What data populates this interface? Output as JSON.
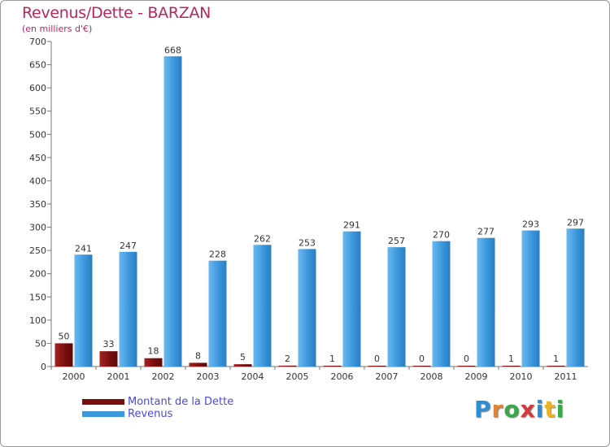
{
  "chart_data": {
    "type": "bar",
    "title": "Revenus/Dette - BARZAN",
    "subtitle": "(en milliers d'€)",
    "categories": [
      "2000",
      "2001",
      "2002",
      "2003",
      "2004",
      "2005",
      "2006",
      "2007",
      "2008",
      "2009",
      "2010",
      "2011"
    ],
    "series": [
      {
        "name": "Montant de la Dette",
        "color": "#7a0f0f",
        "values": [
          50,
          33,
          18,
          8,
          5,
          2,
          1,
          0,
          0,
          0,
          1,
          1
        ]
      },
      {
        "name": "Revenus",
        "color": "#3c98dc",
        "values": [
          241,
          247,
          668,
          228,
          262,
          253,
          291,
          257,
          270,
          277,
          293,
          297
        ]
      }
    ],
    "ylim": [
      0,
      700
    ],
    "yticks": [
      0,
      50,
      100,
      150,
      200,
      250,
      300,
      350,
      400,
      450,
      500,
      550,
      600,
      650,
      700
    ],
    "grid": false,
    "legend": "bottom-left"
  },
  "legend": {
    "items": [
      {
        "label": "Montant de la Dette",
        "color": "#7a0f0f"
      },
      {
        "label": "Revenus",
        "color": "#3c98dc"
      }
    ]
  },
  "logo": {
    "letters": [
      "P",
      "r",
      "o",
      "x",
      "i",
      "t",
      "i"
    ],
    "colors": [
      "#2a8fd6",
      "#e8822a",
      "#3aa84a",
      "#d43a3a",
      "#2a8fd6",
      "#e8b52a",
      "#3aa84a"
    ]
  }
}
